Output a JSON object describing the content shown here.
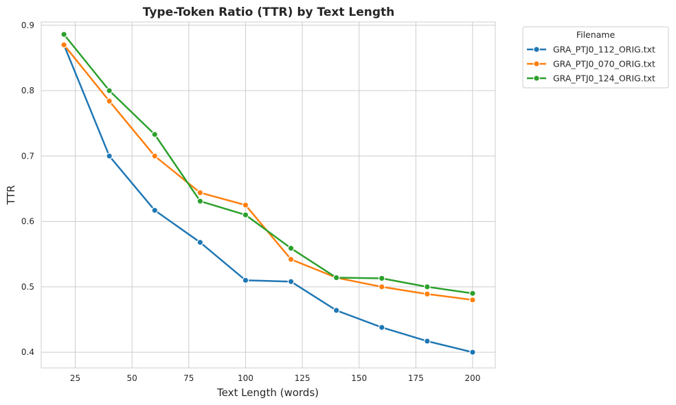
{
  "chart_data": {
    "type": "line",
    "title": "Type-Token Ratio (TTR) by Text Length",
    "xlabel": "Text Length (words)",
    "ylabel": "TTR",
    "xlim": [
      10,
      210
    ],
    "ylim": [
      0.376,
      0.905
    ],
    "xticks": [
      25,
      50,
      75,
      100,
      125,
      150,
      175,
      200
    ],
    "yticks": [
      0.4,
      0.5,
      0.6,
      0.7,
      0.8,
      0.9
    ],
    "grid": true,
    "legend": {
      "title": "Filename",
      "placement": "outside-top-right"
    },
    "x": [
      20,
      40,
      60,
      80,
      100,
      120,
      140,
      160,
      180,
      200
    ],
    "series": [
      {
        "name": "GRA_PTJ0_112_ORIG.txt",
        "color": "#1f77b4",
        "values": [
          0.87,
          0.7,
          0.617,
          0.568,
          0.51,
          0.508,
          0.464,
          0.438,
          0.417,
          0.4
        ]
      },
      {
        "name": "GRA_PTJ0_070_ORIG.txt",
        "color": "#ff7f0e",
        "values": [
          0.87,
          0.784,
          0.7,
          0.644,
          0.625,
          0.542,
          0.514,
          0.5,
          0.489,
          0.48
        ]
      },
      {
        "name": "GRA_PTJ0_124_ORIG.txt",
        "color": "#2ca02c",
        "values": [
          0.886,
          0.8,
          0.733,
          0.631,
          0.61,
          0.559,
          0.514,
          0.513,
          0.5,
          0.49
        ]
      }
    ]
  }
}
